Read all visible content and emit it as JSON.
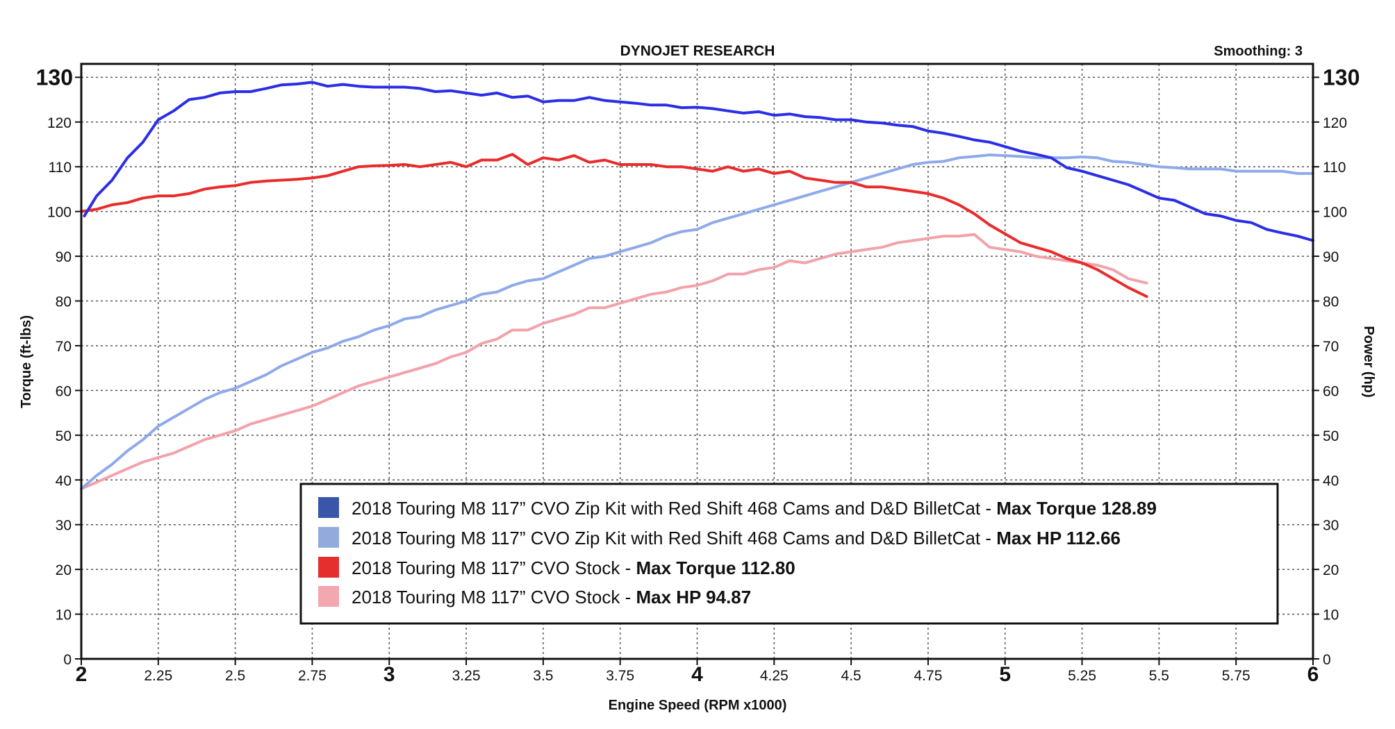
{
  "chart_data": {
    "type": "line",
    "title": "DYNOJET RESEARCH",
    "smoothing": "Smoothing: 3",
    "xlabel": "Engine Speed (RPM x1000)",
    "ylabel_left": "Torque (ft-lbs)",
    "ylabel_right": "Power (hp)",
    "xlim": [
      2,
      6
    ],
    "ylim": [
      0,
      130
    ],
    "grid": true,
    "legend_position": "bottom-center",
    "x_ticks": [
      "2",
      "2.25",
      "2.5",
      "2.75",
      "3",
      "3.25",
      "3.5",
      "3.75",
      "4",
      "4.25",
      "4.5",
      "4.75",
      "5",
      "5.25",
      "5.5",
      "5.75",
      "6"
    ],
    "x_major": [
      "2",
      "3",
      "4",
      "5",
      "6"
    ],
    "y_ticks": [
      "0",
      "10",
      "20",
      "30",
      "40",
      "50",
      "60",
      "70",
      "80",
      "90",
      "100",
      "110",
      "120",
      "130"
    ],
    "series": [
      {
        "name": "2018 Touring M8 117” CVO Zip Kit with Red Shift 468 Cams and D&D BilletCat",
        "suffix_plain": " - ",
        "suffix_bold": "Max Torque 128.89",
        "color": "#2b2ee6",
        "swatch": "#3a56a8",
        "x": [
          2.01,
          2.05,
          2.1,
          2.15,
          2.2,
          2.25,
          2.3,
          2.35,
          2.4,
          2.45,
          2.5,
          2.55,
          2.6,
          2.65,
          2.7,
          2.75,
          2.8,
          2.85,
          2.9,
          2.95,
          3.0,
          3.05,
          3.1,
          3.15,
          3.2,
          3.25,
          3.3,
          3.35,
          3.4,
          3.45,
          3.5,
          3.55,
          3.6,
          3.65,
          3.7,
          3.75,
          3.8,
          3.85,
          3.9,
          3.95,
          4.0,
          4.05,
          4.1,
          4.15,
          4.2,
          4.25,
          4.3,
          4.35,
          4.4,
          4.45,
          4.5,
          4.55,
          4.6,
          4.65,
          4.7,
          4.75,
          4.8,
          4.85,
          4.9,
          4.95,
          5.0,
          5.05,
          5.1,
          5.15,
          5.2,
          5.25,
          5.3,
          5.35,
          5.4,
          5.45,
          5.5,
          5.55,
          5.6,
          5.65,
          5.7,
          5.75,
          5.8,
          5.85,
          5.9,
          5.95,
          6.0
        ],
        "values": [
          99,
          103.5,
          107,
          112,
          115.5,
          120.5,
          122.5,
          125,
          125.5,
          126.5,
          126.8,
          126.8,
          127.5,
          128.3,
          128.5,
          128.89,
          128,
          128.4,
          128,
          127.8,
          127.8,
          127.8,
          127.5,
          126.8,
          127,
          126.5,
          126,
          126.5,
          125.5,
          125.8,
          124.5,
          124.8,
          124.8,
          125.5,
          124.8,
          124.5,
          124.2,
          123.8,
          123.8,
          123.2,
          123.3,
          123,
          122.5,
          122,
          122.3,
          121.5,
          121.8,
          121.2,
          121,
          120.5,
          120.5,
          120,
          119.8,
          119.3,
          119,
          118,
          117.5,
          116.8,
          116,
          115.5,
          114.5,
          113.5,
          112.8,
          112,
          109.8,
          109,
          108,
          107,
          106,
          104.5,
          103,
          102.5,
          101,
          99.5,
          99,
          98,
          97.5,
          96,
          95.2,
          94.5,
          93.5
        ]
      },
      {
        "name": "2018 Touring M8 117” CVO Zip Kit with Red Shift 468 Cams and D&D BilletCat",
        "suffix_plain": " - ",
        "suffix_bold": "Max HP 112.66",
        "color": "#8faaea",
        "swatch": "#93abdc",
        "x": [
          2.0,
          2.05,
          2.1,
          2.15,
          2.2,
          2.25,
          2.3,
          2.35,
          2.4,
          2.45,
          2.5,
          2.55,
          2.6,
          2.65,
          2.7,
          2.75,
          2.8,
          2.85,
          2.9,
          2.95,
          3.0,
          3.05,
          3.1,
          3.15,
          3.2,
          3.25,
          3.3,
          3.35,
          3.4,
          3.45,
          3.5,
          3.55,
          3.6,
          3.65,
          3.7,
          3.75,
          3.8,
          3.85,
          3.9,
          3.95,
          4.0,
          4.05,
          4.1,
          4.15,
          4.2,
          4.25,
          4.3,
          4.35,
          4.4,
          4.45,
          4.5,
          4.55,
          4.6,
          4.65,
          4.7,
          4.75,
          4.8,
          4.85,
          4.9,
          4.95,
          5.0,
          5.05,
          5.1,
          5.15,
          5.2,
          5.25,
          5.3,
          5.35,
          5.4,
          5.45,
          5.5,
          5.55,
          5.6,
          5.65,
          5.7,
          5.75,
          5.8,
          5.85,
          5.9,
          5.95,
          6.0
        ],
        "values": [
          38,
          41,
          43.5,
          46.5,
          49,
          52,
          54,
          56,
          58,
          59.5,
          60.5,
          62,
          63.5,
          65.5,
          67,
          68.5,
          69.5,
          71,
          72,
          73.5,
          74.5,
          76,
          76.5,
          78,
          79,
          80,
          81.5,
          82,
          83.5,
          84.5,
          85,
          86.5,
          88,
          89.5,
          90,
          91,
          92,
          93,
          94.5,
          95.5,
          96,
          97.5,
          98.5,
          99.5,
          100.5,
          101.5,
          102.5,
          103.5,
          104.5,
          105.5,
          106.5,
          107.5,
          108.5,
          109.5,
          110.5,
          111,
          111.2,
          112,
          112.3,
          112.66,
          112.5,
          112.3,
          112,
          112,
          112,
          112.2,
          112,
          111.2,
          111,
          110.5,
          110,
          109.8,
          109.5,
          109.5,
          109.5,
          109,
          109,
          109,
          109,
          108.5,
          108.5
        ]
      },
      {
        "name": "2018 Touring M8 117” CVO Stock",
        "suffix_plain": " - ",
        "suffix_bold": "Max Torque 112.80",
        "color": "#ea2b2b",
        "swatch": "#e52e2e",
        "x": [
          2.0,
          2.05,
          2.1,
          2.15,
          2.2,
          2.25,
          2.3,
          2.35,
          2.4,
          2.45,
          2.5,
          2.55,
          2.6,
          2.65,
          2.7,
          2.75,
          2.8,
          2.85,
          2.9,
          2.95,
          3.0,
          3.05,
          3.1,
          3.15,
          3.2,
          3.25,
          3.3,
          3.35,
          3.4,
          3.45,
          3.5,
          3.55,
          3.6,
          3.65,
          3.7,
          3.75,
          3.8,
          3.85,
          3.9,
          3.95,
          4.0,
          4.05,
          4.1,
          4.15,
          4.2,
          4.25,
          4.3,
          4.35,
          4.4,
          4.45,
          4.5,
          4.55,
          4.6,
          4.65,
          4.7,
          4.75,
          4.8,
          4.85,
          4.9,
          4.95,
          5.0,
          5.05,
          5.1,
          5.15,
          5.2,
          5.25,
          5.3,
          5.35,
          5.4,
          5.46
        ],
        "values": [
          100,
          100.5,
          101.5,
          102,
          103,
          103.5,
          103.5,
          104,
          105,
          105.5,
          105.8,
          106.5,
          106.8,
          107,
          107.2,
          107.5,
          108,
          109,
          110,
          110.2,
          110.3,
          110.5,
          110,
          110.5,
          111,
          110,
          111.5,
          111.5,
          112.8,
          110.5,
          112,
          111.5,
          112.5,
          111,
          111.5,
          110.5,
          110.5,
          110.5,
          110,
          110,
          109.5,
          109,
          110,
          109,
          109.5,
          108.5,
          109,
          107.5,
          107,
          106.5,
          106.5,
          105.5,
          105.5,
          105,
          104.5,
          104,
          103,
          101.5,
          99.5,
          97,
          95,
          93,
          92,
          91,
          89.5,
          88.5,
          87,
          85,
          83,
          81
        ]
      },
      {
        "name": "2018 Touring M8 117” CVO Stock",
        "suffix_plain": " - ",
        "suffix_bold": "Max HP 94.87",
        "color": "#f2a2aa",
        "swatch": "#f3a7af",
        "x": [
          2.0,
          2.05,
          2.1,
          2.15,
          2.2,
          2.25,
          2.3,
          2.35,
          2.4,
          2.45,
          2.5,
          2.55,
          2.6,
          2.65,
          2.7,
          2.75,
          2.8,
          2.85,
          2.9,
          2.95,
          3.0,
          3.05,
          3.1,
          3.15,
          3.2,
          3.25,
          3.3,
          3.35,
          3.4,
          3.45,
          3.5,
          3.55,
          3.6,
          3.65,
          3.7,
          3.75,
          3.8,
          3.85,
          3.9,
          3.95,
          4.0,
          4.05,
          4.1,
          4.15,
          4.2,
          4.25,
          4.3,
          4.35,
          4.4,
          4.45,
          4.5,
          4.55,
          4.6,
          4.65,
          4.7,
          4.75,
          4.8,
          4.85,
          4.9,
          4.95,
          5.0,
          5.05,
          5.1,
          5.15,
          5.2,
          5.25,
          5.3,
          5.35,
          5.4,
          5.46
        ],
        "values": [
          38,
          39.5,
          41,
          42.5,
          44,
          45,
          46,
          47.5,
          49,
          50,
          51,
          52.5,
          53.5,
          54.5,
          55.5,
          56.5,
          58,
          59.5,
          61,
          62,
          63,
          64,
          65,
          66,
          67.5,
          68.5,
          70.5,
          71.5,
          73.5,
          73.5,
          75,
          76,
          77,
          78.5,
          78.5,
          79.5,
          80.5,
          81.5,
          82,
          83,
          83.5,
          84.5,
          86,
          86,
          87,
          87.5,
          89,
          88.5,
          89.5,
          90.5,
          91,
          91.5,
          92,
          93,
          93.5,
          94,
          94.5,
          94.5,
          94.87,
          92,
          91.5,
          91,
          90,
          89.5,
          89,
          88.5,
          88,
          87,
          85,
          84
        ]
      }
    ]
  }
}
